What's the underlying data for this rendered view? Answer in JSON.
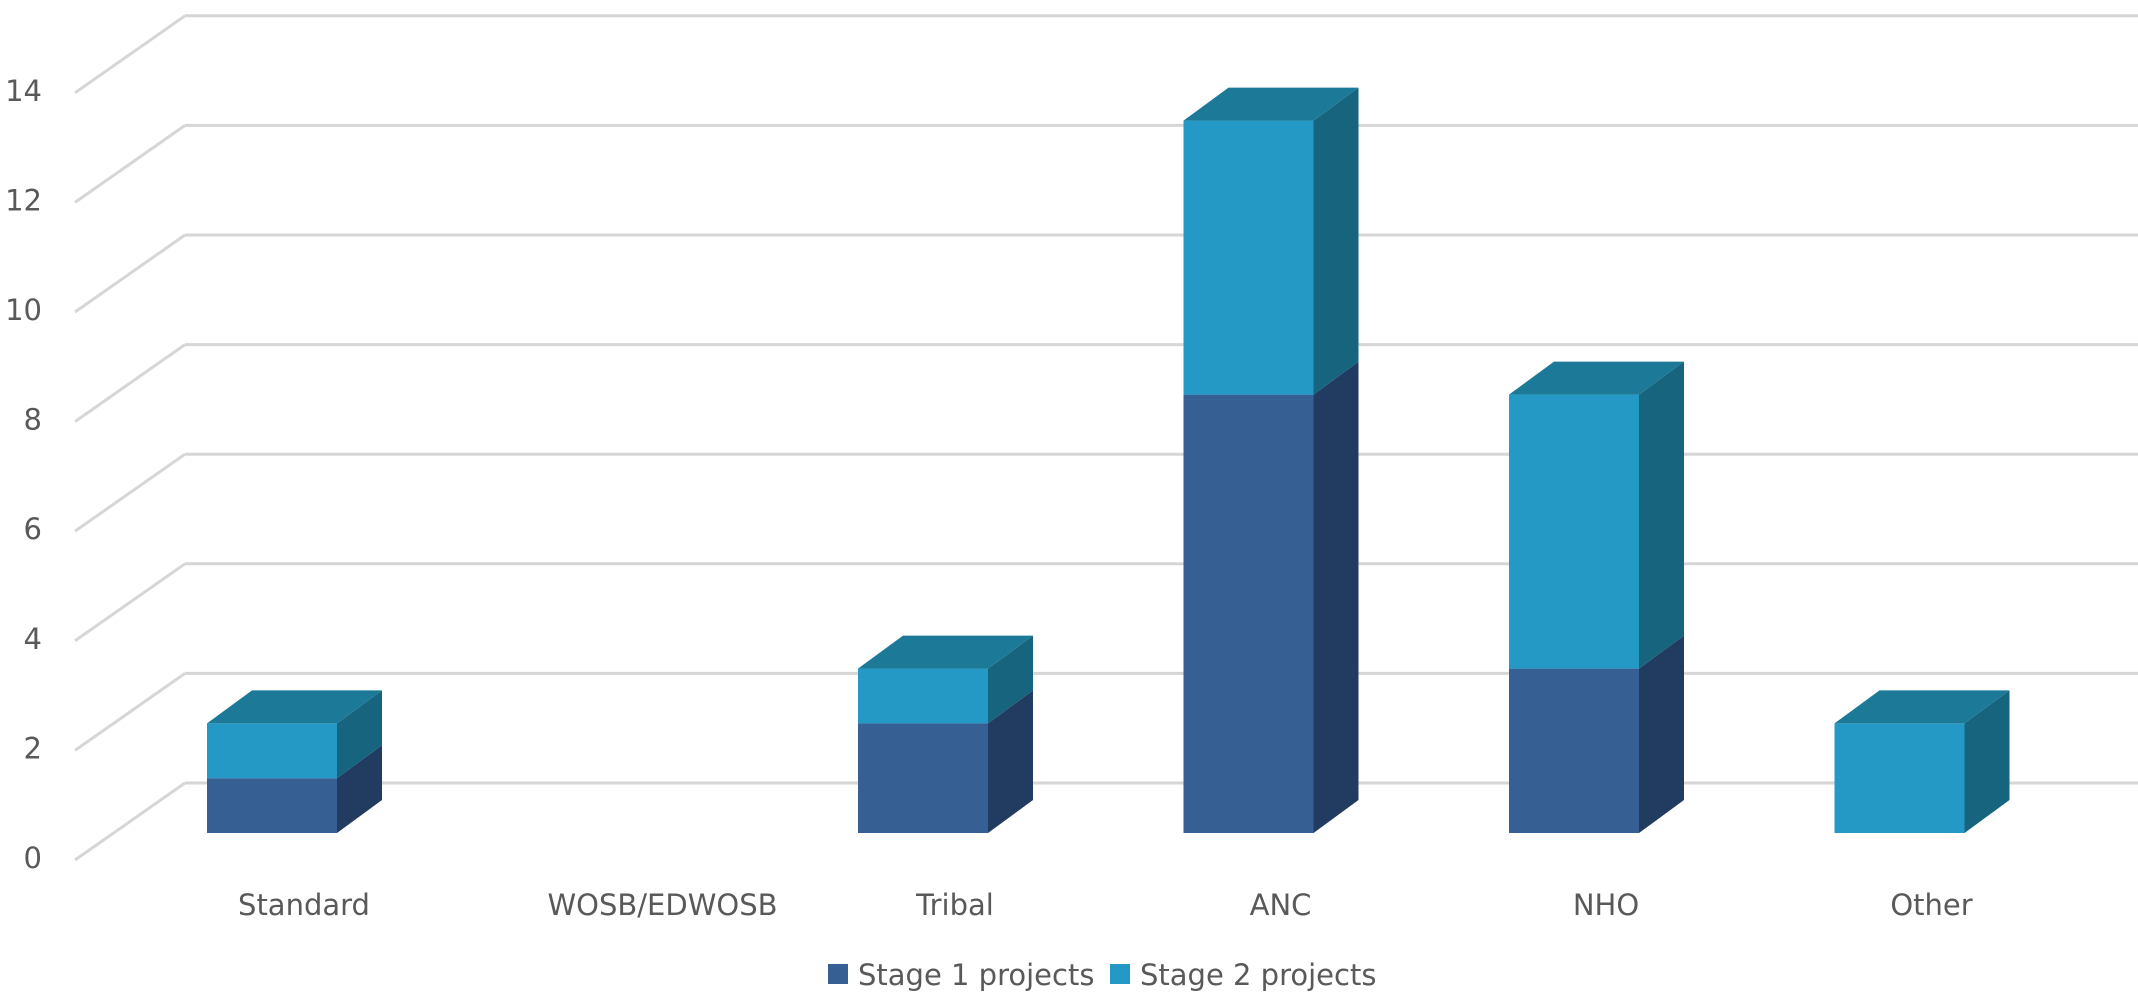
{
  "chart_data": {
    "type": "bar",
    "stacked": true,
    "style": "3d",
    "categories": [
      "Standard",
      "WOSB/EDWOSB",
      "Tribal",
      "ANC",
      "NHO",
      "Other"
    ],
    "series": [
      {
        "name": "Stage 1 projects",
        "values": [
          1,
          0,
          2,
          8,
          3,
          0
        ],
        "color": "#365F94",
        "side_color": "#213C60",
        "top_color": "#2B4F7E"
      },
      {
        "name": "Stage 2 projects",
        "values": [
          1,
          0,
          1,
          5,
          5,
          2
        ],
        "color": "#2499C5",
        "side_color": "#17647E",
        "top_color": "#1C7A98"
      }
    ],
    "yticks": [
      0,
      2,
      4,
      6,
      8,
      10,
      12,
      14
    ],
    "ylim": [
      0,
      15
    ],
    "grid": true,
    "legend": "bottom-center",
    "title": "",
    "xlabel": "",
    "ylabel": ""
  }
}
